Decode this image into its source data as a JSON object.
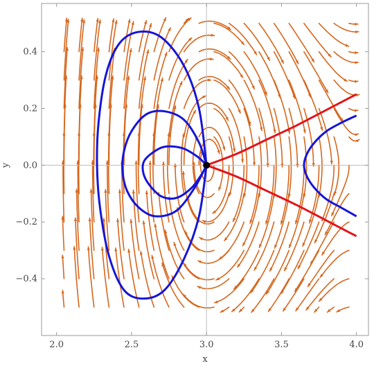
{
  "chart_data": {
    "type": "stream",
    "xlabel": "x",
    "ylabel": "y",
    "xlim": [
      1.9,
      4.08
    ],
    "ylim": [
      -0.6,
      0.57
    ],
    "xticks": [
      2.0,
      2.5,
      3.0,
      3.5,
      4.0
    ],
    "xtick_labels": [
      "2.0",
      "2.5",
      "3.0",
      "3.5",
      "4.0"
    ],
    "yticks": [
      -0.4,
      -0.2,
      0.0,
      0.2,
      0.4
    ],
    "ytick_labels": [
      "−0.4",
      "−0.2",
      "0.0",
      "0.2",
      "0.4"
    ],
    "grid": "axes lines at x=3.0 and y=0",
    "colors": {
      "stream": "#d5661c",
      "orbit": "#1515d8",
      "separatrix": "#e0151b",
      "equilibrium": "#000000",
      "axis_line": "#bdbdbd",
      "frame": "#9a9a9a"
    },
    "equilibrium_point": {
      "x": 3.0,
      "y": 0.0
    },
    "blue_orbits": [
      {
        "name": "",
        "x": [
          3.0,
          2.95,
          2.85,
          2.7,
          2.55,
          2.42,
          2.33,
          2.28,
          2.27,
          2.29,
          2.35,
          2.45,
          2.58,
          2.72,
          2.85,
          2.95,
          3.0
        ],
        "y": [
          0.0,
          0.2,
          0.35,
          0.45,
          0.47,
          0.43,
          0.32,
          0.15,
          0.0,
          -0.15,
          -0.32,
          -0.44,
          -0.47,
          -0.44,
          -0.33,
          -0.18,
          0.0
        ]
      },
      {
        "name": "",
        "x": [
          3.0,
          2.95,
          2.85,
          2.72,
          2.6,
          2.5,
          2.45,
          2.44,
          2.47,
          2.55,
          2.66,
          2.8,
          2.92,
          3.0
        ],
        "y": [
          0.0,
          0.08,
          0.16,
          0.19,
          0.18,
          0.12,
          0.05,
          -0.02,
          -0.09,
          -0.15,
          -0.18,
          -0.16,
          -0.08,
          0.0
        ]
      },
      {
        "name": "",
        "x": [
          3.0,
          2.94,
          2.84,
          2.72,
          2.63,
          2.58,
          2.58,
          2.62,
          2.7,
          2.8,
          2.9,
          2.97,
          3.0
        ],
        "y": [
          0.0,
          0.03,
          0.06,
          0.065,
          0.04,
          0.01,
          -0.03,
          -0.07,
          -0.11,
          -0.115,
          -0.08,
          -0.03,
          0.0
        ]
      },
      {
        "name": "",
        "x": [
          4.0,
          3.9,
          3.8,
          3.72,
          3.67,
          3.65,
          3.67,
          3.72,
          3.8,
          3.9,
          4.0
        ],
        "y": [
          0.175,
          0.15,
          0.12,
          0.08,
          0.04,
          0.0,
          -0.04,
          -0.08,
          -0.12,
          -0.15,
          -0.18
        ]
      }
    ],
    "red_separatrices": [
      {
        "name": "",
        "x": [
          3.0,
          3.2,
          3.4,
          3.6,
          3.8,
          4.0
        ],
        "y": [
          0.0,
          0.04,
          0.09,
          0.14,
          0.195,
          0.25
        ]
      },
      {
        "name": "",
        "x": [
          3.0,
          3.2,
          3.4,
          3.6,
          3.8,
          4.0
        ],
        "y": [
          0.0,
          -0.04,
          -0.09,
          -0.14,
          -0.195,
          -0.25
        ]
      }
    ]
  }
}
